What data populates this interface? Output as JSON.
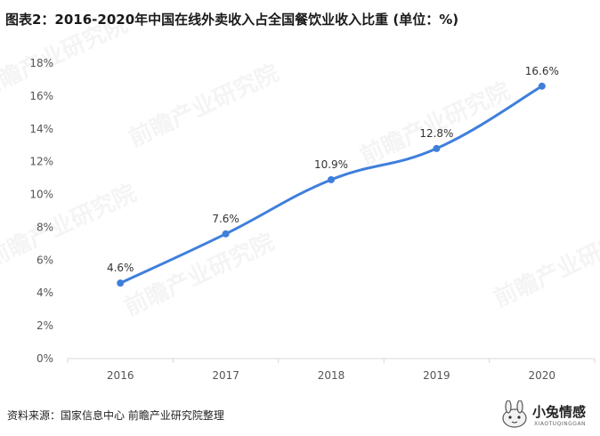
{
  "title": "图表2：2016-2020年中国在线外卖收入占全国餐饮业收入比重 (单位：%)",
  "source": "资料来源：国家信息中心 前瞻产业研究院整理",
  "watermark": "前瞻产业研究院",
  "brand": {
    "name": "小兔情感",
    "sub": "XIAOTUQINGGAN"
  },
  "colors": {
    "line": "#3f7fdc",
    "axis": "#d9d9d9",
    "tick": "#555555",
    "label": "#333333"
  },
  "chart_data": {
    "type": "line",
    "categories": [
      "2016",
      "2017",
      "2018",
      "2019",
      "2020"
    ],
    "values": [
      4.6,
      7.6,
      10.9,
      12.8,
      16.6
    ],
    "data_labels": [
      "4.6%",
      "7.6%",
      "10.9%",
      "12.8%",
      "16.6%"
    ],
    "y_ticks": [
      "0%",
      "2%",
      "4%",
      "6%",
      "8%",
      "10%",
      "12%",
      "14%",
      "16%",
      "18%"
    ],
    "ylim": [
      0,
      18
    ],
    "grid": false,
    "smooth": true
  }
}
